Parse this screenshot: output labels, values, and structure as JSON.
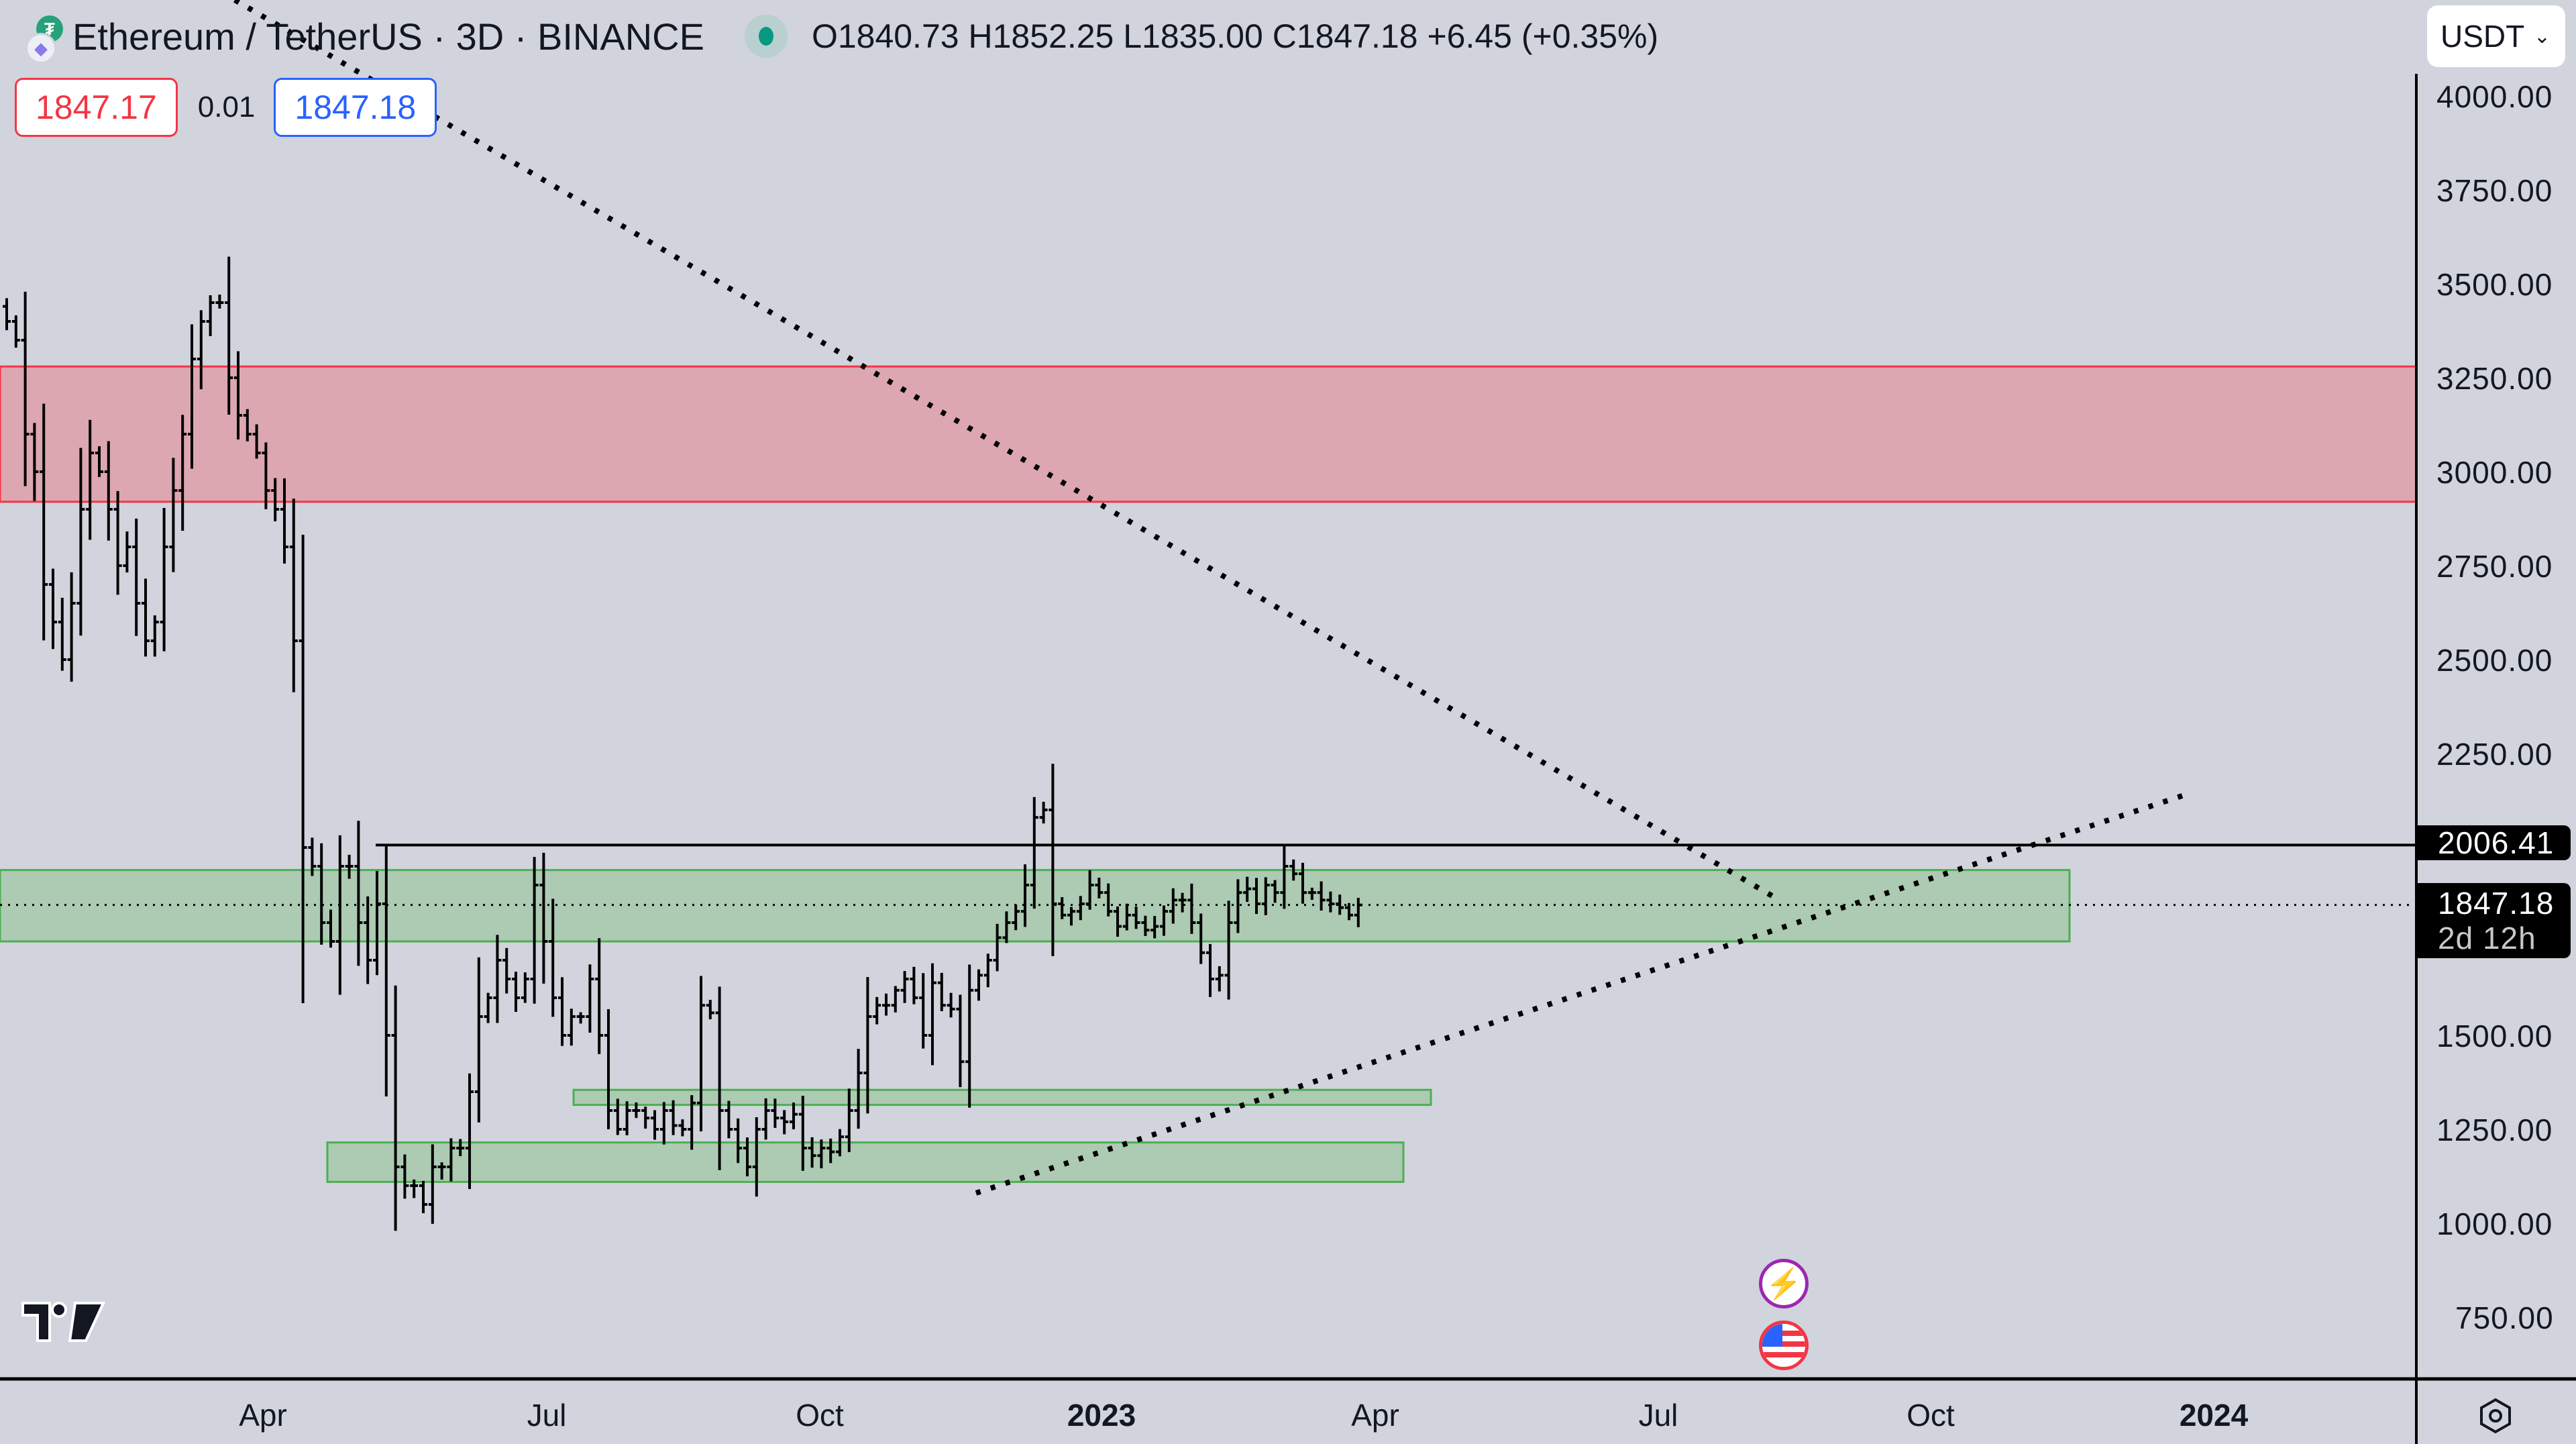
{
  "header": {
    "symbol_title": "Ethereum / TetherUS · 3D · BINANCE",
    "base_icon": "ethereum-icon",
    "quote_icon": "tether-icon",
    "market_status": "open",
    "ohlc": {
      "open": "O1840.73",
      "high": "H1852.25",
      "low": "L1835.00",
      "close": "C1847.18",
      "change": "+6.45 (+0.35%)"
    },
    "bid": "1847.17",
    "spread": "0.01",
    "ask": "1847.18",
    "currency_selector": "USDT"
  },
  "price_axis": {
    "labels": [
      "4000.00",
      "3750.00",
      "3500.00",
      "3250.00",
      "3000.00",
      "2750.00",
      "2500.00",
      "2250.00",
      "1500.00",
      "1250.00",
      "1000.00",
      "750.00"
    ],
    "tags": [
      {
        "value": "2006.41",
        "sub": ""
      },
      {
        "value": "1847.18",
        "sub": "2d 12h"
      }
    ]
  },
  "time_axis": {
    "labels": [
      {
        "text": "Apr",
        "x": 392,
        "bold": false
      },
      {
        "text": "Jul",
        "x": 815,
        "bold": false
      },
      {
        "text": "Oct",
        "x": 1222,
        "bold": false
      },
      {
        "text": "2023",
        "x": 1642,
        "bold": true
      },
      {
        "text": "Apr",
        "x": 2050,
        "bold": false
      },
      {
        "text": "Jul",
        "x": 2472,
        "bold": false
      },
      {
        "text": "Oct",
        "x": 2878,
        "bold": false
      },
      {
        "text": "2024",
        "x": 3300,
        "bold": true
      }
    ]
  },
  "colors": {
    "background": "#d1d4dc",
    "bars": "#000000",
    "resistance_zone_fill": "#dca7b0",
    "resistance_zone_border": "#f23645",
    "support_zone_fill": "#adcab3",
    "support_zone_border": "#4caf50",
    "bid": "#f23645",
    "ask": "#2962ff"
  },
  "chart_data": {
    "type": "ohlc-bar",
    "title": "Ethereum / TetherUS · 3D · BINANCE",
    "xlabel": "",
    "ylabel": "USDT",
    "ylim": [
      600,
      4150
    ],
    "x_ticks": [
      "Apr",
      "Jul",
      "Oct",
      "2023",
      "Apr",
      "Jul",
      "Oct",
      "2024"
    ],
    "y_ticks": [
      750,
      1000,
      1250,
      1500,
      1750,
      2000,
      2250,
      2500,
      2750,
      3000,
      3250,
      3500,
      3750,
      4000
    ],
    "last_price": 1847.18,
    "horizontal_line": 2006.41,
    "zones": [
      {
        "name": "resistance",
        "top": 3280,
        "bottom": 2920,
        "x_start": 0,
        "x_end": 3602,
        "color": "red"
      },
      {
        "name": "support-major",
        "top": 1940,
        "bottom": 1750,
        "x_start": 0,
        "x_end": 3085,
        "color": "green"
      },
      {
        "name": "support-mid",
        "top": 1355,
        "bottom": 1315,
        "x_start": 855,
        "x_end": 2133,
        "color": "green"
      },
      {
        "name": "support-low",
        "top": 1215,
        "bottom": 1110,
        "x_start": 488,
        "x_end": 2092,
        "color": "green"
      }
    ],
    "trendlines": [
      {
        "name": "descending",
        "style": "dotted",
        "from": {
          "x": 350,
          "y": 0
        },
        "to": {
          "x": 2650,
          "y": 1340
        }
      },
      {
        "name": "ascending",
        "style": "dotted",
        "from": {
          "x": 1455,
          "y": 1778
        },
        "to": {
          "x": 3262,
          "y": 1183
        }
      }
    ],
    "bars_close": [
      3400,
      3350,
      3100,
      3000,
      2700,
      2600,
      2500,
      2650,
      2900,
      3050,
      3000,
      2900,
      2750,
      2800,
      2650,
      2550,
      2600,
      2800,
      2950,
      3100,
      3300,
      3400,
      3450,
      3450,
      3250,
      3150,
      3100,
      3050,
      2950,
      2900,
      2800,
      2550,
      2000,
      1950,
      1800,
      1750,
      1950,
      1950,
      1800,
      1700,
      1850,
      1500,
      1150,
      1100,
      1100,
      1050,
      1150,
      1150,
      1200,
      1200,
      1350,
      1550,
      1600,
      1700,
      1650,
      1600,
      1650,
      1900,
      1750,
      1600,
      1500,
      1550,
      1550,
      1650,
      1500,
      1300,
      1250,
      1300,
      1300,
      1280,
      1250,
      1300,
      1260,
      1250,
      1320,
      1580,
      1560,
      1300,
      1250,
      1200,
      1150,
      1250,
      1300,
      1280,
      1270,
      1290,
      1200,
      1180,
      1200,
      1190,
      1230,
      1300,
      1400,
      1550,
      1580,
      1580,
      1620,
      1650,
      1600,
      1500,
      1640,
      1580,
      1570,
      1430,
      1620,
      1660,
      1700,
      1760,
      1800,
      1830,
      1900,
      2080,
      2100,
      1850,
      1820,
      1830,
      1850,
      1900,
      1880,
      1830,
      1790,
      1820,
      1800,
      1780,
      1790,
      1830,
      1860,
      1860,
      1800,
      1720,
      1650,
      1660,
      1800,
      1880,
      1890,
      1850,
      1900,
      1880,
      1950,
      1930,
      1880,
      1880,
      1860,
      1850,
      1840,
      1820,
      1847
    ]
  }
}
